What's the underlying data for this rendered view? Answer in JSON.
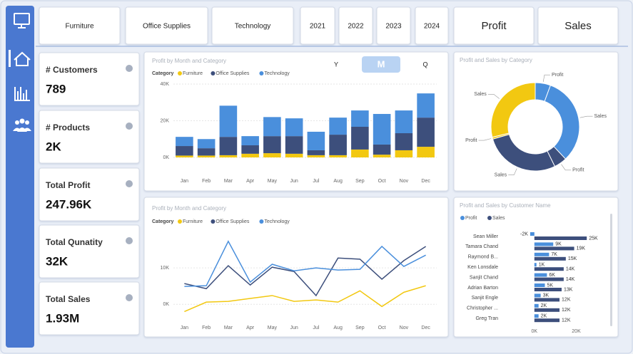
{
  "filters": {
    "categories": [
      "Furniture",
      "Office Supplies",
      "Technology"
    ],
    "years": [
      "2021",
      "2022",
      "2023",
      "2024"
    ],
    "measures": [
      "Profit",
      "Sales"
    ]
  },
  "kpis": [
    {
      "label": "# Customers",
      "value": "789"
    },
    {
      "label": "# Products",
      "value": "2K"
    },
    {
      "label": "Total Profit",
      "value": "247.96K"
    },
    {
      "label": "Total Qunatity",
      "value": "32K"
    },
    {
      "label": "Total Sales",
      "value": "1.93M"
    }
  ],
  "period_toggle": [
    "Y",
    "M",
    "Q"
  ],
  "chart_data": [
    {
      "type": "stacked_bar",
      "title": "Profit by Month and Category",
      "legend_title": "Category",
      "categories": [
        "Jan",
        "Feb",
        "Mar",
        "Apr",
        "May",
        "Jun",
        "Jul",
        "Aug",
        "Sep",
        "Oct",
        "Nov",
        "Dec"
      ],
      "series": [
        {
          "name": "Furniture",
          "color": "#f2c811",
          "values": [
            1000,
            1000,
            1200,
            2000,
            2300,
            2000,
            1200,
            1200,
            4300,
            1500,
            3900,
            5800
          ]
        },
        {
          "name": "Office Supplies",
          "color": "#3d4f7c",
          "values": [
            5200,
            4000,
            10000,
            4600,
            9300,
            9600,
            2700,
            11200,
            12400,
            5500,
            9300,
            15900
          ]
        },
        {
          "name": "Technology",
          "color": "#4a8fdc",
          "values": [
            5000,
            5000,
            17000,
            5000,
            10400,
            9700,
            10100,
            9300,
            8900,
            16700,
            12400,
            13200
          ]
        }
      ],
      "ylim": [
        0,
        40000
      ],
      "yticks": [
        {
          "value": 0,
          "label": "0K"
        },
        {
          "value": 20000,
          "label": "20K"
        },
        {
          "value": 40000,
          "label": "40K"
        }
      ],
      "grid": true
    },
    {
      "type": "line",
      "title": "Profit by Month and Category",
      "legend_title": "Category",
      "categories": [
        "Jan",
        "Feb",
        "Mar",
        "Apr",
        "May",
        "Jun",
        "Jul",
        "Aug",
        "Sep",
        "Oct",
        "Nov",
        "Dec"
      ],
      "series": [
        {
          "name": "Furniture",
          "color": "#f2c811",
          "values": [
            -2000,
            600,
            800,
            1600,
            2400,
            800,
            1200,
            600,
            3700,
            -600,
            3300,
            5100
          ]
        },
        {
          "name": "Office Supplies",
          "color": "#3d4f7c",
          "values": [
            5700,
            4300,
            10600,
            5300,
            10200,
            9000,
            2400,
            12700,
            12400,
            6900,
            12000,
            15900
          ]
        },
        {
          "name": "Technology",
          "color": "#4a8fdc",
          "values": [
            4900,
            5100,
            17300,
            6100,
            11000,
            9200,
            10000,
            9400,
            9600,
            15900,
            10400,
            13500
          ]
        }
      ],
      "ylim": [
        -2500,
        20000
      ],
      "yticks": [
        {
          "value": 0,
          "label": "0K"
        },
        {
          "value": 10000,
          "label": "10K"
        }
      ],
      "grid": true
    },
    {
      "type": "donut",
      "title": "Profit and Sales by Category",
      "labels": [
        "Profit",
        "Sales",
        "Profit",
        "Sales",
        "Profit",
        "Sales"
      ],
      "values": [
        5.6,
        32.4,
        4.7,
        27.8,
        0.7,
        28.8
      ],
      "colors": [
        "#4a8fdc",
        "#4a8fdc",
        "#3d4f7c",
        "#3d4f7c",
        "#f2c811",
        "#f2c811"
      ]
    },
    {
      "type": "hbar",
      "title": "Profit and Sales by Customer Name",
      "categories": [
        "Sean Miller",
        "Tamara Chand",
        "Raymond B...",
        "Ken Lonsdale",
        "Sanjit Chand",
        "Adrian Barton",
        "Sanjit Engle",
        "Christopher ...",
        "Greg Tran"
      ],
      "series": [
        {
          "name": "Profit",
          "color": "#4a8fdc",
          "values": [
            -2000,
            9000,
            7000,
            1000,
            6000,
            5000,
            3000,
            2000,
            2000
          ],
          "value_labels": [
            "-2K",
            "9K",
            "7K",
            "1K",
            "6K",
            "5K",
            "3K",
            "2K",
            "2K"
          ]
        },
        {
          "name": "Sales",
          "color": "#3d4f7c",
          "values": [
            25000,
            19000,
            15000,
            14000,
            14000,
            13000,
            12000,
            12000,
            12000
          ],
          "value_labels": [
            "25K",
            "19K",
            "15K",
            "14K",
            "14K",
            "13K",
            "12K",
            "12K",
            "12K"
          ]
        }
      ],
      "xlim": [
        -3000,
        28000
      ],
      "xticks": [
        {
          "value": 0,
          "label": "0K"
        },
        {
          "value": 20000,
          "label": "20K"
        }
      ]
    }
  ]
}
